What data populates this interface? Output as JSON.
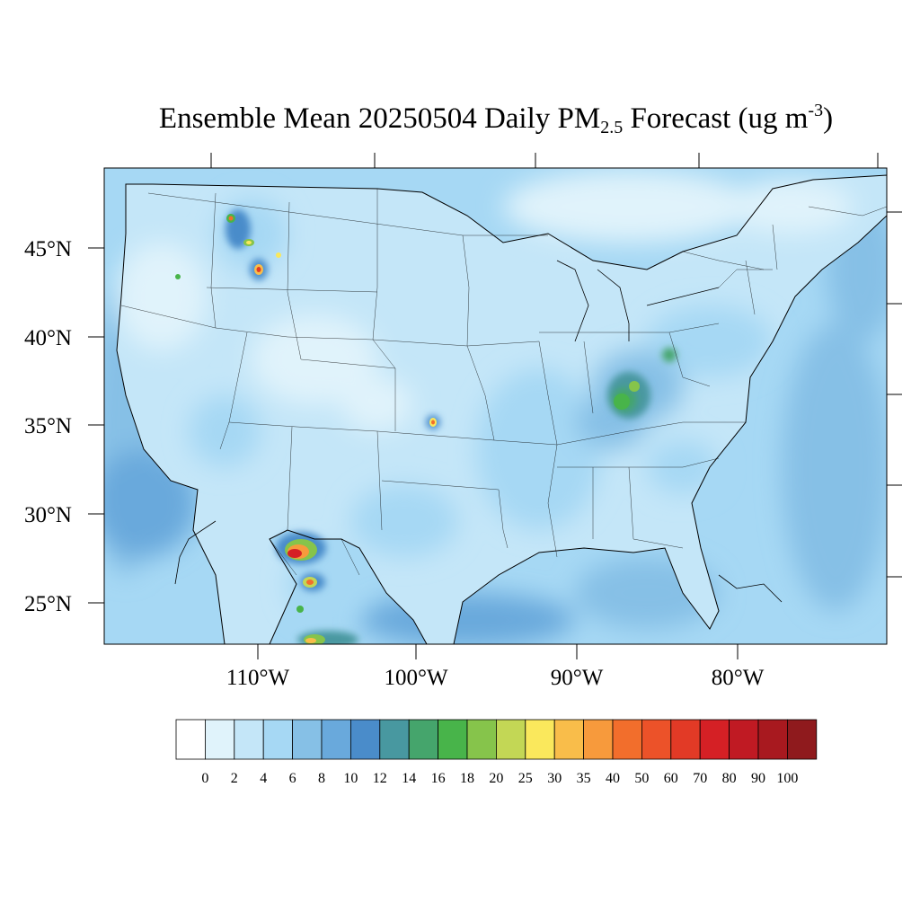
{
  "title": {
    "main": "Ensemble Mean 20250504 Daily PM",
    "sub": "2.5",
    "rest": " Forecast (ug m",
    "sup": "-3",
    "close": ")"
  },
  "axes": {
    "lat_labels": [
      "45°N",
      "40°N",
      "35°N",
      "30°N",
      "25°N"
    ],
    "lon_labels": [
      "110°W",
      "100°W",
      "90°W",
      "80°W"
    ]
  },
  "colorbar": {
    "labels": [
      "0",
      "2",
      "4",
      "6",
      "8",
      "10",
      "12",
      "14",
      "16",
      "18",
      "20",
      "25",
      "30",
      "35",
      "40",
      "50",
      "60",
      "70",
      "80",
      "90",
      "100"
    ],
    "colors": [
      "#ffffff",
      "#e0f3fb",
      "#c4e6f8",
      "#a6d8f4",
      "#86c0e6",
      "#69a9dc",
      "#4a8cca",
      "#4898a0",
      "#45a56c",
      "#48b44a",
      "#86c44b",
      "#c3d755",
      "#fae85c",
      "#f9bd4a",
      "#f79a3c",
      "#f26e2c",
      "#ec5229",
      "#e23a26",
      "#d52025",
      "#c01a23",
      "#a8191f",
      "#8f1a1d"
    ]
  },
  "map_data": {
    "extent": {
      "lon_min": -126,
      "lon_max": -65,
      "lat_min": 23,
      "lat_max": 49
    },
    "ocean_colors": [
      "#a6d8f4",
      "#86c0e6",
      "#69a9dc"
    ],
    "land_base_color": "#c4e6f8"
  }
}
